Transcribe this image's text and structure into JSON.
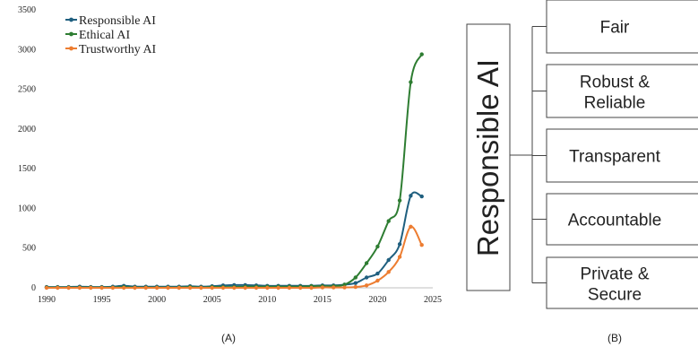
{
  "panel_labels": {
    "left": "(A)",
    "right": "(B)"
  },
  "chart_data": {
    "type": "line",
    "title": "",
    "xlabel": "",
    "ylabel": "",
    "xlim": [
      1990,
      2025
    ],
    "ylim": [
      0,
      3500
    ],
    "x_ticks": [
      "1990",
      "1995",
      "2000",
      "2005",
      "2010",
      "2015",
      "2020",
      "2025"
    ],
    "y_ticks": [
      "0",
      "500",
      "1000",
      "1500",
      "2000",
      "2500",
      "3000",
      "3500"
    ],
    "grid": false,
    "legend_position": "top-left",
    "x": [
      1990,
      1991,
      1992,
      1993,
      1994,
      1995,
      1996,
      1997,
      1998,
      1999,
      2000,
      2001,
      2002,
      2003,
      2004,
      2005,
      2006,
      2007,
      2008,
      2009,
      2010,
      2011,
      2012,
      2013,
      2014,
      2015,
      2016,
      2017,
      2018,
      2019,
      2020,
      2021,
      2022,
      2023,
      2024
    ],
    "series": [
      {
        "name": "Responsible AI",
        "color": "#1f5f7f",
        "values": [
          10,
          10,
          10,
          15,
          10,
          10,
          15,
          25,
          15,
          15,
          15,
          15,
          15,
          20,
          15,
          20,
          30,
          35,
          35,
          30,
          25,
          25,
          25,
          25,
          25,
          30,
          30,
          40,
          60,
          130,
          180,
          350,
          550,
          1160,
          1150
        ]
      },
      {
        "name": "Ethical AI",
        "color": "#2e7d32",
        "values": [
          5,
          5,
          5,
          5,
          5,
          5,
          5,
          10,
          5,
          5,
          5,
          5,
          5,
          10,
          5,
          10,
          10,
          10,
          15,
          15,
          15,
          15,
          15,
          15,
          20,
          20,
          20,
          40,
          130,
          310,
          520,
          840,
          1100,
          2590,
          2940
        ]
      },
      {
        "name": "Trustworthy AI",
        "color": "#ed7d31",
        "values": [
          0,
          0,
          0,
          0,
          0,
          0,
          0,
          0,
          0,
          0,
          0,
          0,
          0,
          0,
          0,
          0,
          0,
          0,
          0,
          0,
          0,
          0,
          0,
          0,
          0,
          5,
          5,
          5,
          10,
          30,
          90,
          200,
          390,
          770,
          540
        ]
      }
    ]
  },
  "diagram": {
    "root": "Responsible AI",
    "items": [
      "Fair",
      "Robust & Reliable",
      "Transparent",
      "Accountable",
      "Private & Secure"
    ]
  }
}
